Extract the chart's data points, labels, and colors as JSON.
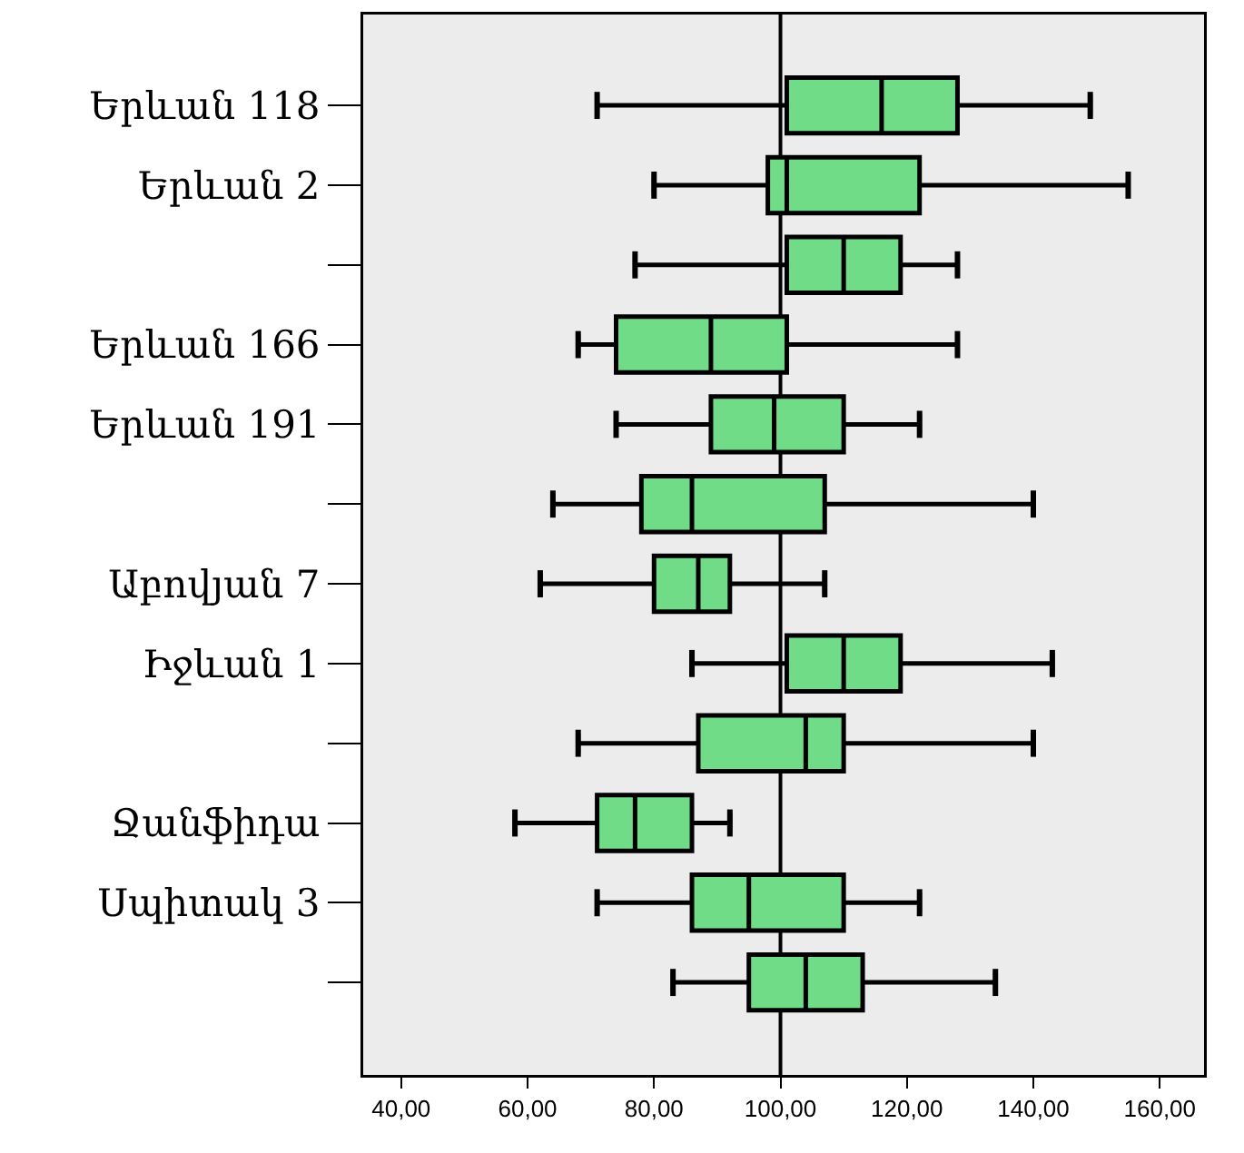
{
  "chart_data": {
    "type": "box",
    "orientation": "horizontal",
    "color": "#70dc88",
    "categories": [
      "Երևան 118",
      "Երևան 2",
      null,
      "Երևան 166",
      "Երևան 191",
      null,
      "Աբովյան 7",
      "Իջևան 1",
      null,
      "Ջանֆիդա",
      "Սպիտակ 3",
      null
    ],
    "boxes": [
      {
        "low": 71,
        "q1": 101,
        "median": 116,
        "q3": 128,
        "high": 149
      },
      {
        "low": 80,
        "q1": 98,
        "median": 101,
        "q3": 122,
        "high": 155
      },
      {
        "low": 77,
        "q1": 101,
        "median": 110,
        "q3": 119,
        "high": 128
      },
      {
        "low": 68,
        "q1": 74,
        "median": 89,
        "q3": 101,
        "high": 128
      },
      {
        "low": 74,
        "q1": 89,
        "median": 99,
        "q3": 110,
        "high": 122
      },
      {
        "low": 64,
        "q1": 78,
        "median": 86,
        "q3": 107,
        "high": 140
      },
      {
        "low": 62,
        "q1": 80,
        "median": 87,
        "q3": 92,
        "high": 107
      },
      {
        "low": 86,
        "q1": 101,
        "median": 110,
        "q3": 119,
        "high": 143
      },
      {
        "low": 68,
        "q1": 87,
        "median": 104,
        "q3": 110,
        "high": 140
      },
      {
        "low": 58,
        "q1": 71,
        "median": 77,
        "q3": 86,
        "high": 92
      },
      {
        "low": 71,
        "q1": 86,
        "median": 95,
        "q3": 110,
        "high": 122
      },
      {
        "low": 83,
        "q1": 95,
        "median": 104,
        "q3": 113,
        "high": 134
      }
    ],
    "xlim": [
      34,
      167
    ],
    "xticks": [
      {
        "value": 40,
        "label": "40,00"
      },
      {
        "value": 60,
        "label": "60,00"
      },
      {
        "value": 80,
        "label": "80,00"
      },
      {
        "value": 100,
        "label": "100,00"
      },
      {
        "value": 120,
        "label": "120,00"
      },
      {
        "value": 140,
        "label": "140,00"
      },
      {
        "value": 160,
        "label": "160,00"
      }
    ],
    "ref_lines": [
      {
        "axis": "x",
        "value": 100,
        "color": "#000000"
      }
    ],
    "grid": false
  }
}
